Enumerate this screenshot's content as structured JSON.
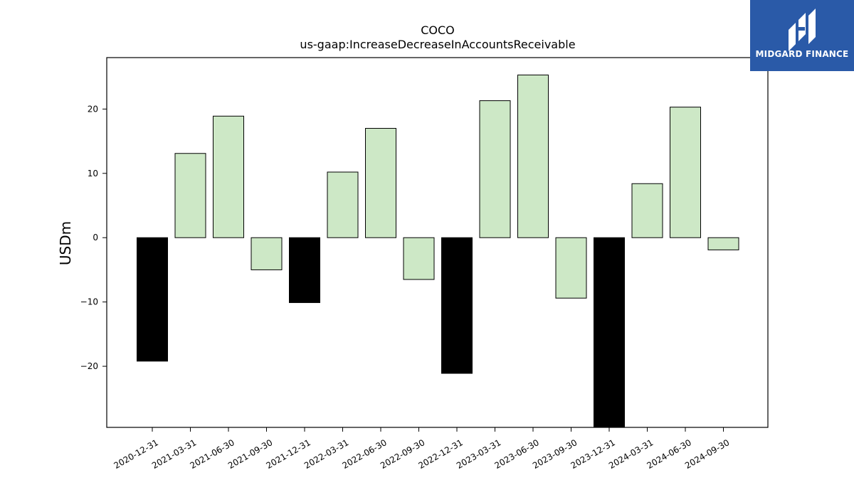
{
  "brand": {
    "name": "MIDGARD FINANCE",
    "bg_color": "#2a5aa8"
  },
  "chart_data": {
    "type": "bar",
    "title": "COCO",
    "subtitle": "us-gaap:IncreaseDecreaseInAccountsReceivable",
    "ylabel": "USDm",
    "xlabel": "",
    "ylim": [
      -29.5,
      28.0
    ],
    "yticks": [
      -20,
      -10,
      0,
      10,
      20
    ],
    "grid": false,
    "categories": [
      "2020-12-31",
      "2021-03-31",
      "2021-06-30",
      "2021-09-30",
      "2021-12-31",
      "2022-03-31",
      "2022-06-30",
      "2022-09-30",
      "2022-12-31",
      "2023-03-31",
      "2023-06-30",
      "2023-09-30",
      "2023-12-31",
      "2024-03-31",
      "2024-06-30",
      "2024-09-30"
    ],
    "values": [
      -19.2,
      13.1,
      18.9,
      -5.0,
      -10.1,
      10.2,
      17.0,
      -6.5,
      -21.1,
      21.3,
      25.3,
      -9.4,
      -29.5,
      8.4,
      20.3,
      -1.9
    ],
    "bar_colors": [
      "#000000",
      "#cde8c6",
      "#cde8c6",
      "#cde8c6",
      "#000000",
      "#cde8c6",
      "#cde8c6",
      "#cde8c6",
      "#000000",
      "#cde8c6",
      "#cde8c6",
      "#cde8c6",
      "#000000",
      "#cde8c6",
      "#cde8c6",
      "#cde8c6"
    ]
  }
}
